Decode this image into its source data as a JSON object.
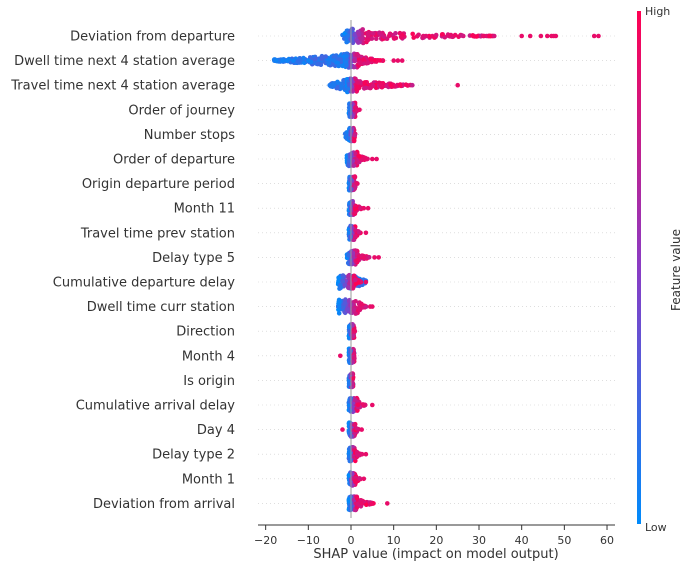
{
  "chart_data": {
    "type": "scatter",
    "subtype": "shap-beeswarm-summary",
    "title": "",
    "xlabel": "SHAP value (impact on model output)",
    "ylabel": "",
    "xlim": [
      -22,
      62
    ],
    "x_ticks": [
      -20,
      -10,
      0,
      10,
      20,
      30,
      40,
      50,
      60
    ],
    "x_tick_labels": [
      "−20",
      "−10",
      "0",
      "10",
      "20",
      "30",
      "40",
      "50",
      "60"
    ],
    "grid": "horizontal dotted row guides",
    "colorbar": {
      "label": "Feature value",
      "high_label": "High",
      "low_label": "Low",
      "low_color": "#008bfb",
      "high_color": "#ff0052",
      "placement": "right"
    },
    "features": [
      {
        "name": "Deviation from departure",
        "range": [
          -2,
          58
        ],
        "core": [
          -1.5,
          4
        ],
        "low_range": [
          -2,
          0.5
        ],
        "outliers": [
          31,
          40,
          42,
          44.5,
          46,
          47,
          47.5,
          48,
          57,
          58
        ]
      },
      {
        "name": "Dwell time next 4 station average",
        "range": [
          -18,
          12
        ],
        "core": [
          -1.5,
          2
        ],
        "low_range": [
          -18,
          0.5
        ],
        "outliers": [
          -17.5,
          -16,
          -15,
          -13.5,
          -10,
          10,
          11,
          12
        ]
      },
      {
        "name": "Travel time next 4 station average",
        "range": [
          -5,
          25
        ],
        "core": [
          -1,
          1.5
        ],
        "low_range": [
          -5,
          0.5
        ],
        "outliers": [
          -5,
          -4,
          7,
          25
        ]
      },
      {
        "name": "Order of journey",
        "range": [
          -1,
          2
        ],
        "core": [
          -0.5,
          1
        ],
        "low_range": [
          -0.5,
          0.5
        ],
        "outliers": [
          2
        ]
      },
      {
        "name": "Number stops",
        "range": [
          -1.5,
          1.5
        ],
        "core": [
          -0.5,
          0.8
        ],
        "low_range": [
          -1.5,
          0.5
        ],
        "outliers": []
      },
      {
        "name": "Order of departure",
        "range": [
          -1.5,
          6
        ],
        "core": [
          -1,
          1.5
        ],
        "low_range": [
          -0.5,
          0.5
        ],
        "outliers": [
          3.5,
          5,
          6
        ]
      },
      {
        "name": "Origin departure period",
        "range": [
          -1,
          1.5
        ],
        "core": [
          -0.5,
          1
        ],
        "low_range": [
          -0.5,
          0.5
        ],
        "outliers": [
          1.5
        ]
      },
      {
        "name": "Month 11",
        "range": [
          -1,
          4
        ],
        "core": [
          -0.5,
          1
        ],
        "low_range": [
          -0.5,
          0.5
        ],
        "outliers": [
          3,
          4
        ]
      },
      {
        "name": "Travel time prev station",
        "range": [
          -1,
          3.5
        ],
        "core": [
          -0.5,
          1
        ],
        "low_range": [
          -0.5,
          0.5
        ],
        "outliers": [
          3.5
        ]
      },
      {
        "name": "Delay type 5",
        "range": [
          -1.5,
          7
        ],
        "core": [
          -1,
          1.5
        ],
        "low_range": [
          -0.5,
          0.5
        ],
        "outliers": [
          3,
          5.5,
          6.5
        ]
      },
      {
        "name": "Cumulative departure delay",
        "range": [
          -3.5,
          3.5
        ],
        "core": [
          -3,
          1
        ],
        "low_range": [
          -0.5,
          3.5
        ],
        "outliers": [
          3.5
        ]
      },
      {
        "name": "Dwell time curr station",
        "range": [
          -3,
          5
        ],
        "core": [
          -3,
          2
        ],
        "low_range": [
          -3,
          0
        ],
        "outliers": [
          4.5,
          5
        ]
      },
      {
        "name": "Direction",
        "range": [
          -1,
          1
        ],
        "core": [
          -0.5,
          0.8
        ],
        "low_range": [
          -0.5,
          0.8
        ],
        "outliers": []
      },
      {
        "name": "Month 4",
        "range": [
          -2.5,
          1
        ],
        "core": [
          -0.5,
          0.8
        ],
        "low_range": [
          -0.5,
          0.8
        ],
        "outliers": [
          -2.5
        ]
      },
      {
        "name": "Is origin",
        "range": [
          -0.5,
          0.5
        ],
        "core": [
          -0.5,
          0.5
        ],
        "low_range": [
          -0.5,
          0.5
        ],
        "outliers": []
      },
      {
        "name": "Cumulative arrival delay",
        "range": [
          -1,
          5
        ],
        "core": [
          -0.5,
          1.5
        ],
        "low_range": [
          -0.5,
          0.5
        ],
        "outliers": [
          3,
          5
        ]
      },
      {
        "name": "Day 4",
        "range": [
          -2,
          2.5
        ],
        "core": [
          -0.5,
          1
        ],
        "low_range": [
          -0.5,
          0.5
        ],
        "outliers": [
          -2,
          2.5
        ]
      },
      {
        "name": "Delay type 2",
        "range": [
          -1.5,
          4
        ],
        "core": [
          -0.5,
          1
        ],
        "low_range": [
          -0.5,
          0.5
        ],
        "outliers": [
          3.5
        ]
      },
      {
        "name": "Month 1",
        "range": [
          -1,
          3.5
        ],
        "core": [
          -0.5,
          1
        ],
        "low_range": [
          -0.5,
          0.5
        ],
        "outliers": [
          3
        ]
      },
      {
        "name": "Deviation from arrival",
        "range": [
          -1,
          8.5
        ],
        "core": [
          -0.5,
          1.5
        ],
        "low_range": [
          -0.5,
          0.5
        ],
        "outliers": [
          2.5,
          8.5
        ]
      }
    ]
  }
}
